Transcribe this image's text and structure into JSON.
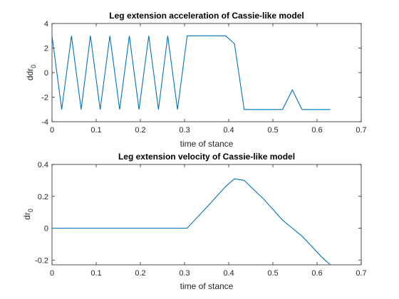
{
  "chart_data": [
    {
      "type": "line",
      "title": "Leg extension acceleration of Cassie-like model",
      "xlabel": "time of stance",
      "ylabel_base": "ddr",
      "ylabel_sub": "0",
      "xlim": [
        0,
        0.7
      ],
      "ylim": [
        -4,
        4
      ],
      "xticks": [
        0,
        0.1,
        0.2,
        0.3,
        0.4,
        0.5,
        0.6,
        0.7
      ],
      "yticks": [
        -4,
        -2,
        0,
        2,
        4
      ],
      "grid": false,
      "color": "#0072BD",
      "x": [
        0,
        0.022,
        0.044,
        0.066,
        0.087,
        0.109,
        0.131,
        0.153,
        0.175,
        0.197,
        0.219,
        0.241,
        0.262,
        0.284,
        0.306,
        0.33,
        0.35,
        0.37,
        0.393,
        0.413,
        0.435,
        0.46,
        0.48,
        0.5,
        0.522,
        0.544,
        0.566,
        0.59,
        0.61,
        0.63
      ],
      "y": [
        3,
        -3,
        3,
        -3,
        3,
        -3,
        3,
        -3,
        3,
        -3,
        3,
        -3,
        3,
        -3,
        3,
        3,
        3,
        3,
        3,
        2.35,
        -3,
        -3,
        -3,
        -3,
        -3,
        -1.4,
        -3,
        -3,
        -3,
        -3
      ]
    },
    {
      "type": "line",
      "title": "Leg extension velocity of Cassie-like model",
      "xlabel": "time of stance",
      "ylabel_base": "dr",
      "ylabel_sub": "0",
      "xlim": [
        0,
        0.7
      ],
      "ylim": [
        -0.23,
        0.4
      ],
      "xticks": [
        0,
        0.1,
        0.2,
        0.3,
        0.4,
        0.5,
        0.6,
        0.7
      ],
      "yticks": [
        -0.2,
        0,
        0.2,
        0.4
      ],
      "grid": false,
      "color": "#0072BD",
      "x": [
        0,
        0.1,
        0.2,
        0.306,
        0.35,
        0.393,
        0.413,
        0.435,
        0.48,
        0.522,
        0.544,
        0.566,
        0.59,
        0.61,
        0.63
      ],
      "y": [
        0,
        0,
        0,
        0,
        0.13,
        0.262,
        0.31,
        0.3,
        0.18,
        0.05,
        0,
        -0.05,
        -0.12,
        -0.18,
        -0.23
      ]
    }
  ]
}
